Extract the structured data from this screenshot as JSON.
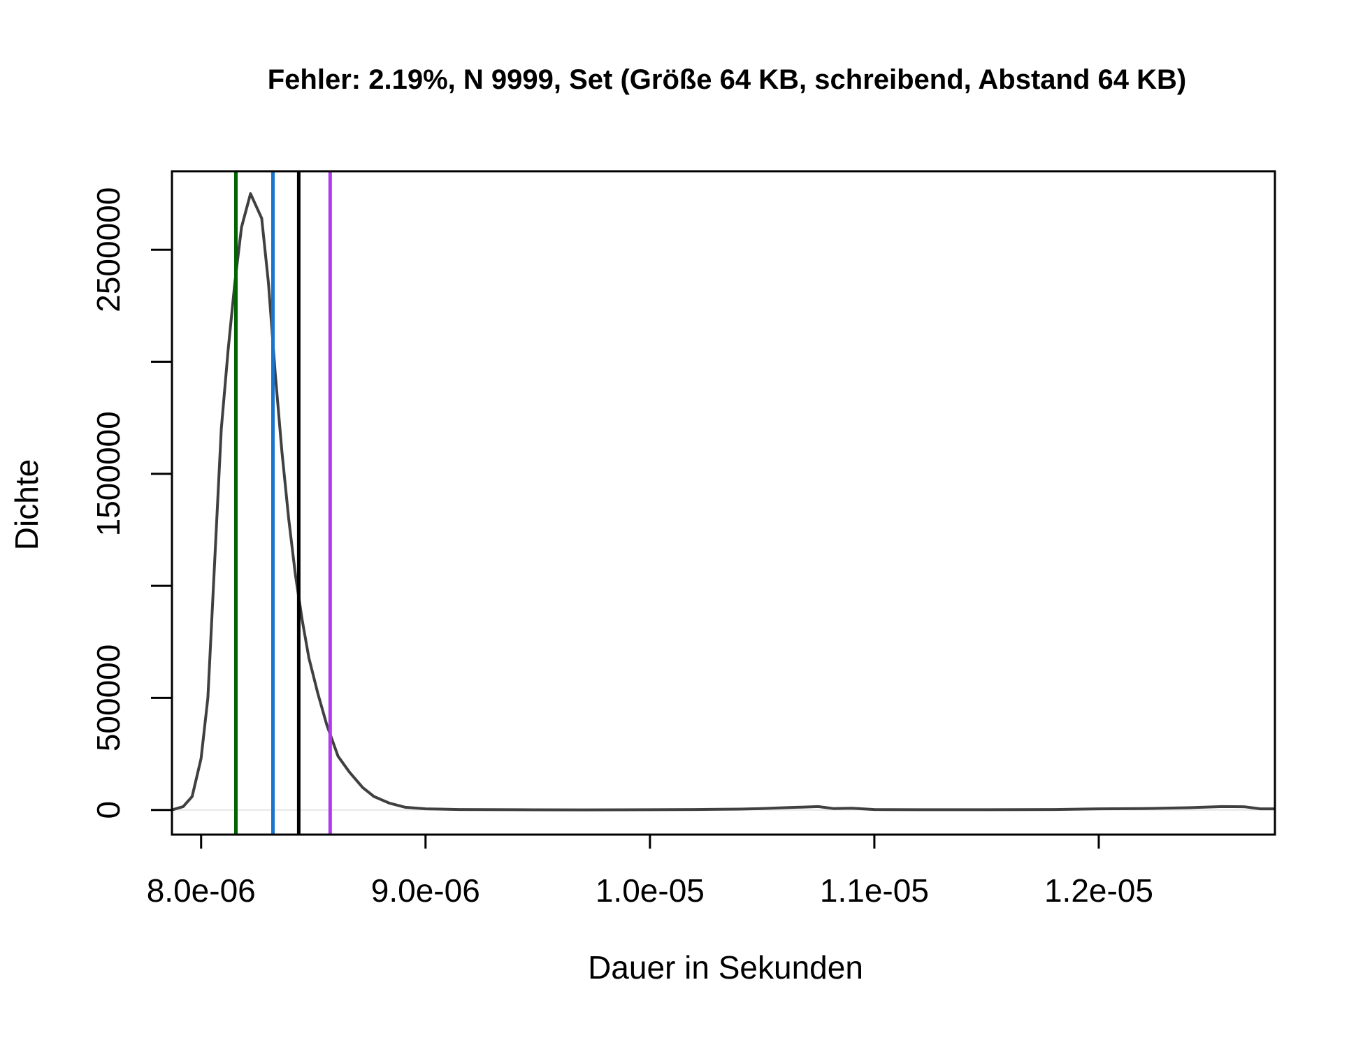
{
  "chart_data": {
    "type": "line",
    "title": "Fehler: 2.19%, N 9999, Set (Größe 64 KB, schreibend, Abstand 64 KB)",
    "xlabel": "Dauer in Sekunden",
    "ylabel": "Dichte",
    "xlim": [
      7.87e-06,
      1.2785e-05
    ],
    "ylim": [
      -110000,
      2850000
    ],
    "x_ticks": [
      {
        "value": 8e-06,
        "label": "8.0e-06"
      },
      {
        "value": 9e-06,
        "label": "9.0e-06"
      },
      {
        "value": 1e-05,
        "label": "1.0e-05"
      },
      {
        "value": 1.1e-05,
        "label": "1.1e-05"
      },
      {
        "value": 1.2e-05,
        "label": "1.2e-05"
      }
    ],
    "y_ticks": [
      {
        "value": 0,
        "label": "0"
      },
      {
        "value": 500000,
        "label": "500000"
      },
      {
        "value": 1000000,
        "label": ""
      },
      {
        "value": 1500000,
        "label": "1500000"
      },
      {
        "value": 2000000,
        "label": ""
      },
      {
        "value": 2500000,
        "label": "2500000"
      }
    ],
    "grid": false,
    "zero_line": true,
    "series": [
      {
        "color": "#404040",
        "points": [
          [
            7.87e-06,
            0
          ],
          [
            7.92e-06,
            15000
          ],
          [
            7.96e-06,
            60000
          ],
          [
            8e-06,
            230000
          ],
          [
            8.03e-06,
            500000
          ],
          [
            8.05e-06,
            900000
          ],
          [
            8.07e-06,
            1300000
          ],
          [
            8.09e-06,
            1700000
          ],
          [
            8.12e-06,
            2050000
          ],
          [
            8.15e-06,
            2350000
          ],
          [
            8.18e-06,
            2600000
          ],
          [
            8.22e-06,
            2750000
          ],
          [
            8.27e-06,
            2640000
          ],
          [
            8.3e-06,
            2350000
          ],
          [
            8.33e-06,
            1950000
          ],
          [
            8.36e-06,
            1600000
          ],
          [
            8.39e-06,
            1300000
          ],
          [
            8.42e-06,
            1050000
          ],
          [
            8.45e-06,
            850000
          ],
          [
            8.48e-06,
            680000
          ],
          [
            8.52e-06,
            520000
          ],
          [
            8.56e-06,
            380000
          ],
          [
            8.61e-06,
            240000
          ],
          [
            8.66e-06,
            170000
          ],
          [
            8.72e-06,
            100000
          ],
          [
            8.77e-06,
            60000
          ],
          [
            8.84e-06,
            30000
          ],
          [
            8.91e-06,
            12000
          ],
          [
            9e-06,
            5000
          ],
          [
            9.15e-06,
            2000
          ],
          [
            9.4e-06,
            1000
          ],
          [
            9.7e-06,
            500
          ],
          [
            1e-05,
            1000
          ],
          [
            1.02e-05,
            2000
          ],
          [
            1.04e-05,
            4000
          ],
          [
            1.05e-05,
            6000
          ],
          [
            1.06e-05,
            10000
          ],
          [
            1.075e-05,
            15000
          ],
          [
            1.082e-05,
            6000
          ],
          [
            1.09e-05,
            8000
          ],
          [
            1.1e-05,
            2000
          ],
          [
            1.12e-05,
            1000
          ],
          [
            1.15e-05,
            1000
          ],
          [
            1.18e-05,
            2000
          ],
          [
            1.2e-05,
            5000
          ],
          [
            1.22e-05,
            6000
          ],
          [
            1.24e-05,
            10000
          ],
          [
            1.255e-05,
            15000
          ],
          [
            1.265e-05,
            14000
          ],
          [
            1.272e-05,
            5000
          ],
          [
            1.2785e-05,
            5000
          ]
        ]
      }
    ],
    "vertical_lines": [
      {
        "x": 8.155e-06,
        "color": "#006400"
      },
      {
        "x": 8.32e-06,
        "color": "#1874CD"
      },
      {
        "x": 8.435e-06,
        "color": "#000000"
      },
      {
        "x": 8.575e-06,
        "color": "#B23AEE"
      }
    ]
  }
}
